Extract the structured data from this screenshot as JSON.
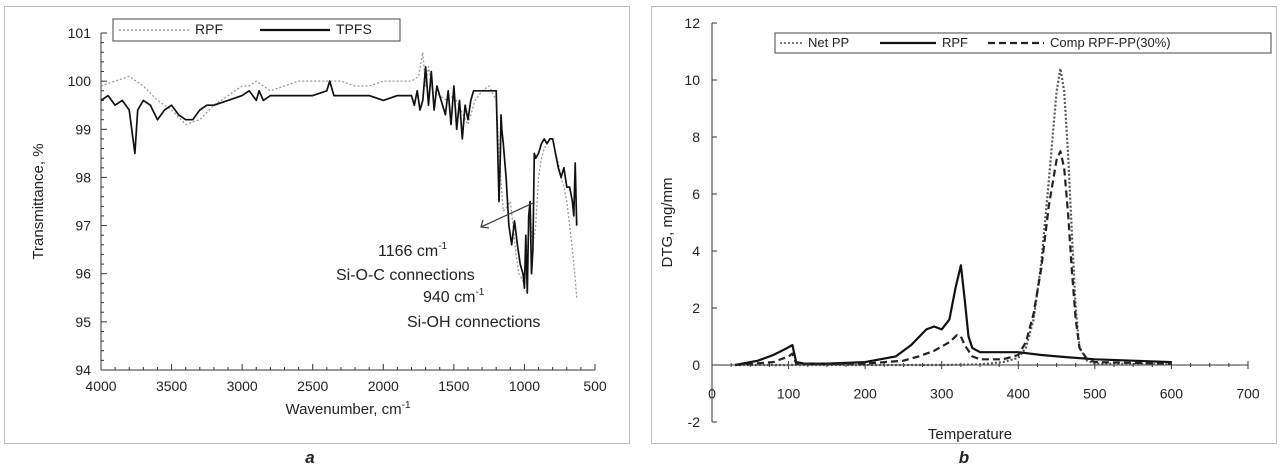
{
  "chart_data": [
    {
      "type": "line",
      "panel_letter": "a",
      "xlabel_main": "Wavenumber, cm",
      "xlabel_sup": "-1",
      "ylabel": "Transmittance, %",
      "xlim": [
        4000,
        500
      ],
      "ylim": [
        94,
        101
      ],
      "x_reversed": true,
      "xticks": [
        "4000",
        "3500",
        "3000",
        "2500",
        "2000",
        "1500",
        "1000",
        "500"
      ],
      "yticks": [
        "94",
        "95",
        "96",
        "97",
        "98",
        "99",
        "100",
        "101"
      ],
      "grid": false,
      "legend_position": "top-left",
      "series": [
        {
          "name": "RPF",
          "style": "dotted",
          "color": "#9a9a9a",
          "x": [
            4000,
            3900,
            3800,
            3700,
            3600,
            3500,
            3400,
            3300,
            3200,
            3100,
            3000,
            2950,
            2900,
            2850,
            2800,
            2700,
            2600,
            2500,
            2400,
            2300,
            2200,
            2100,
            2000,
            1900,
            1800,
            1750,
            1720,
            1700,
            1680,
            1650,
            1600,
            1550,
            1500,
            1450,
            1400,
            1350,
            1300,
            1250,
            1200,
            1180,
            1166,
            1150,
            1120,
            1100,
            1080,
            1060,
            1040,
            1020,
            1000,
            980,
            960,
            940,
            920,
            900,
            880,
            860,
            840,
            820,
            800,
            780,
            760,
            740,
            720,
            700,
            680,
            660,
            640,
            630
          ],
          "y": [
            99.9,
            100.0,
            100.1,
            99.9,
            99.6,
            99.4,
            99.1,
            99.2,
            99.5,
            99.7,
            99.9,
            99.9,
            100.0,
            99.9,
            99.8,
            99.9,
            100.0,
            100.0,
            100.0,
            100.0,
            99.9,
            99.9,
            100.0,
            100.0,
            100.0,
            100.1,
            100.6,
            99.9,
            100.3,
            99.8,
            99.7,
            99.6,
            99.7,
            99.4,
            99.1,
            99.6,
            99.8,
            99.9,
            99.6,
            98.6,
            97.9,
            97.3,
            97.4,
            97.5,
            97.0,
            96.4,
            96.0,
            95.9,
            95.8,
            96.4,
            97.3,
            96.6,
            97.0,
            98.0,
            98.4,
            98.6,
            98.7,
            98.8,
            98.8,
            98.5,
            98.3,
            98.0,
            97.8,
            97.5,
            97.0,
            96.5,
            95.9,
            95.5
          ]
        },
        {
          "name": "TPFS",
          "style": "solid",
          "color": "#111111",
          "x": [
            4000,
            3950,
            3900,
            3850,
            3800,
            3760,
            3740,
            3700,
            3650,
            3600,
            3550,
            3500,
            3450,
            3400,
            3350,
            3300,
            3250,
            3200,
            3100,
            3000,
            2950,
            2900,
            2880,
            2850,
            2800,
            2700,
            2600,
            2500,
            2400,
            2380,
            2350,
            2300,
            2200,
            2100,
            2000,
            1900,
            1850,
            1800,
            1780,
            1760,
            1740,
            1720,
            1700,
            1680,
            1660,
            1640,
            1620,
            1600,
            1560,
            1540,
            1520,
            1500,
            1480,
            1460,
            1440,
            1420,
            1400,
            1380,
            1360,
            1340,
            1300,
            1250,
            1200,
            1180,
            1170,
            1166,
            1160,
            1150,
            1130,
            1110,
            1090,
            1070,
            1050,
            1030,
            1010,
            1000,
            990,
            980,
            970,
            960,
            950,
            940,
            930,
            920,
            900,
            880,
            860,
            840,
            820,
            800,
            780,
            760,
            740,
            720,
            700,
            680,
            660,
            650,
            640,
            630
          ],
          "y": [
            99.6,
            99.7,
            99.5,
            99.6,
            99.4,
            98.5,
            99.4,
            99.6,
            99.5,
            99.2,
            99.4,
            99.5,
            99.3,
            99.2,
            99.2,
            99.4,
            99.5,
            99.5,
            99.6,
            99.7,
            99.8,
            99.6,
            99.8,
            99.6,
            99.7,
            99.7,
            99.7,
            99.7,
            99.8,
            100.0,
            99.7,
            99.7,
            99.7,
            99.7,
            99.6,
            99.7,
            99.7,
            99.7,
            99.5,
            99.8,
            99.4,
            99.6,
            100.3,
            99.5,
            100.2,
            99.4,
            99.9,
            99.7,
            99.3,
            99.8,
            99.1,
            99.9,
            99.0,
            99.6,
            98.8,
            99.5,
            99.2,
            99.6,
            99.8,
            99.8,
            99.8,
            99.8,
            99.8,
            97.5,
            98.5,
            99.3,
            99.0,
            98.7,
            98.0,
            97.0,
            96.6,
            97.1,
            96.6,
            96.2,
            96.0,
            95.7,
            96.8,
            95.6,
            97.2,
            97.5,
            96.0,
            96.5,
            98.5,
            98.4,
            98.5,
            98.7,
            98.8,
            98.7,
            98.8,
            98.8,
            98.5,
            98.2,
            98.0,
            98.2,
            97.8,
            97.8,
            97.5,
            97.2,
            98.3,
            97.0
          ]
        }
      ],
      "annotations": [
        {
          "line1_main": "1166 cm",
          "line1_sup": "-1",
          "line2": "Si-O-C connections"
        },
        {
          "line1_main": "940 cm",
          "line1_sup": "-1",
          "line2": "Si-OH connections"
        }
      ]
    },
    {
      "type": "line",
      "panel_letter": "b",
      "xlabel": "Temperature",
      "ylabel": "DTG, mg/mm",
      "xlim": [
        0,
        700
      ],
      "ylim": [
        -2,
        12
      ],
      "xticks": [
        "0",
        "100",
        "200",
        "300",
        "400",
        "500",
        "600",
        "700"
      ],
      "yticks": [
        "-2",
        "0",
        "2",
        "4",
        "6",
        "8",
        "10",
        "12"
      ],
      "grid": false,
      "legend_position": "top",
      "series": [
        {
          "name": "Net PP",
          "style": "dotted",
          "color": "#555555",
          "x": [
            30,
            100,
            200,
            300,
            350,
            380,
            400,
            410,
            420,
            430,
            440,
            450,
            455,
            460,
            465,
            470,
            475,
            480,
            490,
            500,
            600
          ],
          "y": [
            0,
            0,
            0,
            0,
            0.02,
            0.1,
            0.25,
            0.6,
            1.6,
            3.6,
            6.5,
            9.6,
            10.4,
            9.6,
            7.4,
            4.6,
            2.0,
            0.6,
            0.15,
            0.05,
            0.02
          ]
        },
        {
          "name": "RPF",
          "style": "solid",
          "color": "#111111",
          "x": [
            30,
            60,
            80,
            95,
            105,
            110,
            120,
            150,
            200,
            240,
            260,
            280,
            290,
            300,
            310,
            318,
            325,
            330,
            335,
            340,
            350,
            370,
            400,
            430,
            460,
            500,
            550,
            600
          ],
          "y": [
            0,
            0.15,
            0.35,
            0.55,
            0.7,
            0.1,
            0.05,
            0.05,
            0.1,
            0.3,
            0.7,
            1.25,
            1.35,
            1.25,
            1.6,
            2.7,
            3.5,
            2.3,
            1.0,
            0.6,
            0.45,
            0.45,
            0.45,
            0.35,
            0.28,
            0.2,
            0.15,
            0.1
          ]
        },
        {
          "name": "Comp RPF-PP(30%)",
          "style": "dashed",
          "color": "#222222",
          "x": [
            30,
            80,
            100,
            105,
            110,
            200,
            250,
            270,
            290,
            310,
            320,
            325,
            330,
            340,
            350,
            380,
            400,
            410,
            420,
            430,
            440,
            450,
            455,
            460,
            465,
            470,
            475,
            480,
            490,
            500,
            600
          ],
          "y": [
            0,
            0.1,
            0.3,
            0.4,
            0.05,
            0.05,
            0.15,
            0.3,
            0.5,
            0.8,
            1.05,
            1.0,
            0.7,
            0.3,
            0.2,
            0.2,
            0.35,
            0.8,
            1.8,
            3.4,
            5.6,
            7.2,
            7.5,
            6.9,
            5.3,
            3.3,
            1.6,
            0.6,
            0.2,
            0.1,
            0.05
          ]
        }
      ]
    }
  ]
}
